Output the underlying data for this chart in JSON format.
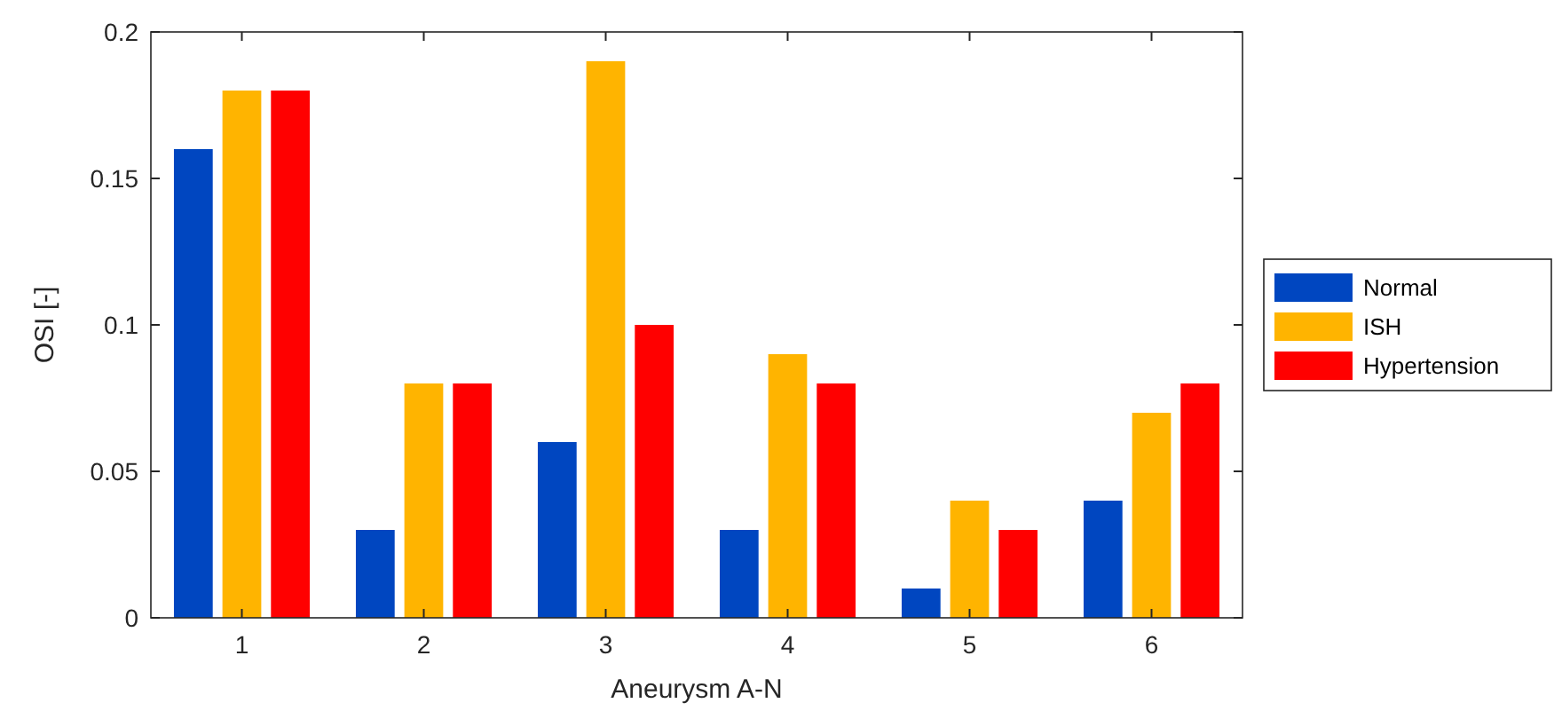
{
  "chart_data": {
    "type": "bar",
    "xlabel": "Aneurysm A-N",
    "ylabel": "OSI [-]",
    "categories": [
      "1",
      "2",
      "3",
      "4",
      "5",
      "6"
    ],
    "series": [
      {
        "name": "Normal",
        "color": "#0046c0",
        "values": [
          0.16,
          0.03,
          0.06,
          0.03,
          0.01,
          0.04
        ]
      },
      {
        "name": "ISH",
        "color": "#ffb400",
        "values": [
          0.18,
          0.08,
          0.19,
          0.09,
          0.04,
          0.07
        ]
      },
      {
        "name": "Hypertension",
        "color": "#ff0000",
        "values": [
          0.18,
          0.08,
          0.1,
          0.08,
          0.03,
          0.08
        ]
      }
    ],
    "ylim": [
      0,
      0.2
    ],
    "yticks": [
      0,
      0.05,
      0.1,
      0.15,
      0.2
    ],
    "grid": false,
    "legend": "right"
  }
}
